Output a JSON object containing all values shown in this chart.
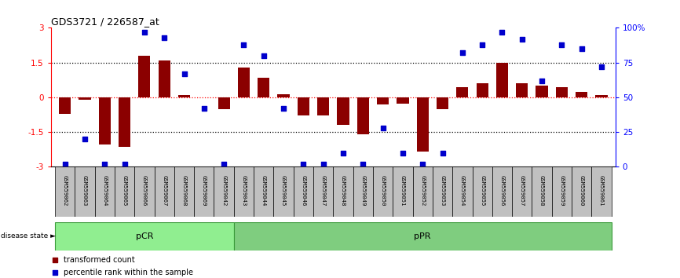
{
  "title": "GDS3721 / 226587_at",
  "samples": [
    "GSM559062",
    "GSM559063",
    "GSM559064",
    "GSM559065",
    "GSM559066",
    "GSM559067",
    "GSM559068",
    "GSM559069",
    "GSM559042",
    "GSM559043",
    "GSM559044",
    "GSM559045",
    "GSM559046",
    "GSM559047",
    "GSM559048",
    "GSM559049",
    "GSM559050",
    "GSM559051",
    "GSM559052",
    "GSM559053",
    "GSM559054",
    "GSM559055",
    "GSM559056",
    "GSM559057",
    "GSM559058",
    "GSM559059",
    "GSM559060",
    "GSM559061"
  ],
  "bar_values": [
    -0.7,
    -0.1,
    -2.05,
    -2.15,
    1.8,
    1.6,
    0.1,
    -0.02,
    -0.5,
    1.3,
    0.85,
    0.12,
    -0.8,
    -0.8,
    -1.2,
    -1.6,
    -0.3,
    -0.28,
    -2.35,
    -0.5,
    0.45,
    0.6,
    1.5,
    0.6,
    0.5,
    0.45,
    0.25,
    0.1
  ],
  "percentile_values": [
    2,
    20,
    2,
    2,
    97,
    93,
    67,
    42,
    2,
    88,
    80,
    42,
    2,
    2,
    10,
    2,
    28,
    10,
    2,
    10,
    82,
    88,
    97,
    92,
    62,
    88,
    85,
    72
  ],
  "pCR_count": 9,
  "pPR_count": 19,
  "ylim": [
    -3,
    3
  ],
  "yticks": [
    -3,
    -1.5,
    0,
    1.5,
    3
  ],
  "ytick_labels": [
    "-3",
    "-1.5",
    "0",
    "1.5",
    "3"
  ],
  "right_yticks": [
    0,
    25,
    50,
    75,
    100
  ],
  "right_ytick_labels": [
    "0",
    "25",
    "50",
    "75",
    "100%"
  ],
  "hlines_dotted": [
    -1.5,
    1.5
  ],
  "hline_red": 0,
  "bar_color": "#8B0000",
  "dot_color": "#0000CC",
  "pCR_color": "#90EE90",
  "pPR_color": "#7FCD7F",
  "label_bg_color": "#C0C0C0",
  "legend_red_label": "transformed count",
  "legend_blue_label": "percentile rank within the sample"
}
